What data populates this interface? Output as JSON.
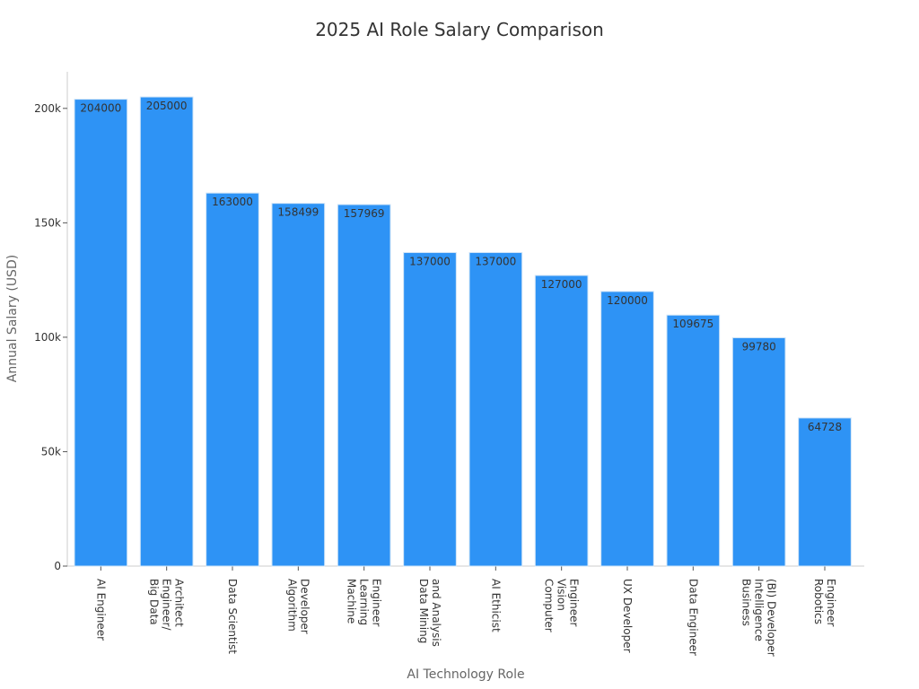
{
  "chart_data": {
    "type": "bar",
    "title": "2025 AI Role Salary Comparison",
    "xlabel": "AI Technology Role",
    "ylabel": "Annual Salary (USD)",
    "categories": [
      [
        "AI Engineer"
      ],
      [
        "Big Data",
        "Engineer/",
        "Architect"
      ],
      [
        "Data Scientist"
      ],
      [
        "Algorithm",
        "Developer"
      ],
      [
        "Machine",
        "Learning",
        "Engineer"
      ],
      [
        "Data Mining",
        "and Analysis"
      ],
      [
        "AI Ethicist"
      ],
      [
        "Computer",
        "Vision",
        "Engineer"
      ],
      [
        "UX Developer"
      ],
      [
        "Data Engineer"
      ],
      [
        "Business",
        "Intelligence",
        "(BI) Developer"
      ],
      [
        "Robotics",
        "Engineer"
      ]
    ],
    "values": [
      204000,
      205000,
      163000,
      158499,
      157969,
      137000,
      137000,
      127000,
      120000,
      109675,
      99780,
      64728
    ],
    "data_labels": [
      "204000",
      "205000",
      "163000",
      "158499",
      "157969",
      "137000",
      "137000",
      "127000",
      "120000",
      "109675",
      "99780",
      "64728"
    ],
    "ylim": [
      0,
      216000
    ],
    "yticks": [
      0,
      50000,
      100000,
      150000,
      200000
    ],
    "ytick_labels": [
      "0",
      "50k",
      "100k",
      "150k",
      "200k"
    ],
    "grid": false,
    "legend": "none",
    "bar_color": "#2e93f5",
    "bar_edge_color": "#cfe4f7"
  }
}
